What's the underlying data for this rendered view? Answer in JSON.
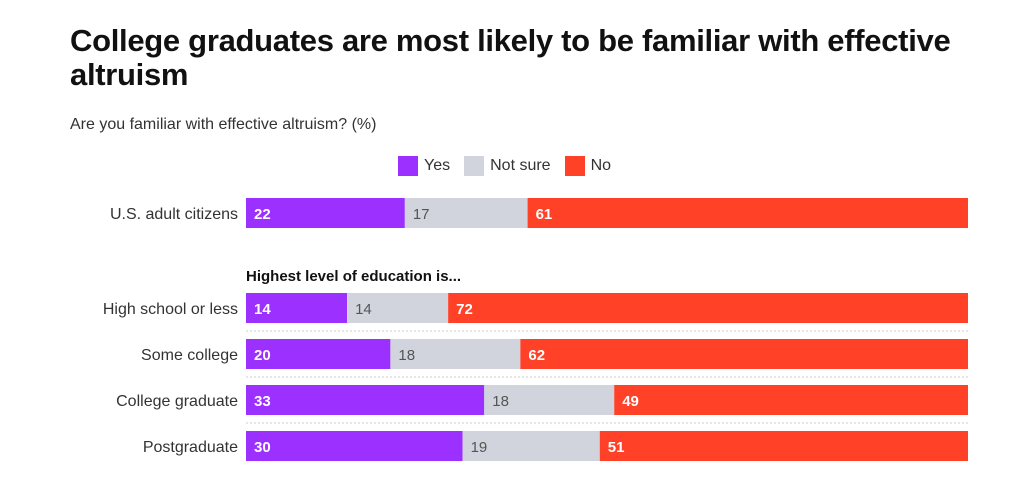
{
  "header": {
    "title": "College graduates are most likely to be familiar with effective altruism",
    "subtitle": "Are you familiar with effective altruism? (%)"
  },
  "legend": [
    {
      "label": "Yes",
      "color": "#9b30ff"
    },
    {
      "label": "Not sure",
      "color": "#d1d4dc"
    },
    {
      "label": "No",
      "color": "#ff4128"
    }
  ],
  "chart_data": {
    "type": "bar",
    "orientation": "horizontal",
    "stacked": true,
    "title": "College graduates are most likely to be familiar with effective altruism",
    "subtitle": "Are you familiar with effective altruism? (%)",
    "group_header": "Highest level of education is...",
    "categories": [
      "U.S. adult citizens",
      "High school or less",
      "Some college",
      "College graduate",
      "Postgraduate"
    ],
    "series": [
      {
        "name": "Yes",
        "color": "#9b30ff",
        "values": [
          22,
          14,
          20,
          33,
          30
        ]
      },
      {
        "name": "Not sure",
        "color": "#d1d4dc",
        "values": [
          17,
          14,
          18,
          18,
          19
        ]
      },
      {
        "name": "No",
        "color": "#ff4128",
        "values": [
          61,
          72,
          62,
          49,
          51
        ]
      }
    ],
    "xlim": [
      0,
      100
    ],
    "legend_position": "top"
  }
}
